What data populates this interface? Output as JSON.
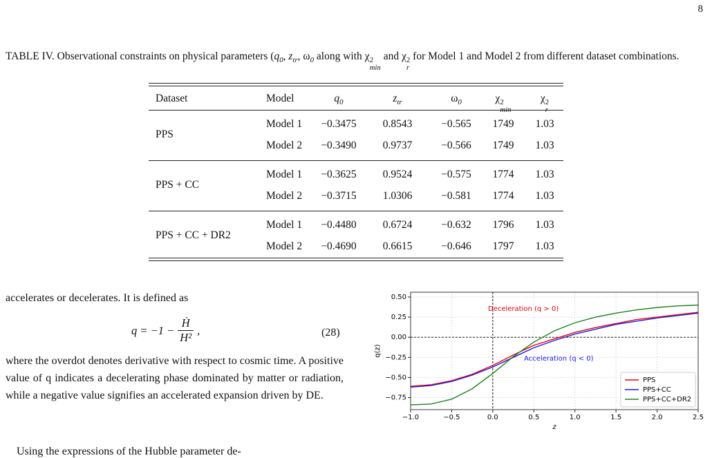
{
  "page_number": "8",
  "caption": [
    {
      "t": "TABLE IV. Observational constraints on physical parameters ("
    },
    {
      "t": "q",
      "i": true,
      "sub": "0"
    },
    {
      "t": ", "
    },
    {
      "t": "z",
      "i": true,
      "sub": "tr"
    },
    {
      "t": ", "
    },
    {
      "t": "ω",
      "sub": "0"
    },
    {
      "t": " along with "
    },
    {
      "t": "χ",
      "sup": "2",
      "sub": "min"
    },
    {
      "t": " and "
    },
    {
      "t": "χ",
      "sup": "2",
      "sub": "r"
    },
    {
      "t": " for Model 1 and Model 2 from different dataset combinations."
    }
  ],
  "table": {
    "header": [
      {
        "t": "Dataset"
      },
      {
        "t": "Model"
      },
      {
        "t": "q",
        "i": true,
        "sub": "0"
      },
      {
        "t": "z",
        "i": true,
        "sub": "tr"
      },
      {
        "t": "ω",
        "sub": "0"
      },
      {
        "t": "χ",
        "sup": "2",
        "sub": "min"
      },
      {
        "t": "χ",
        "sup": "2",
        "sub": "r"
      }
    ],
    "groups": [
      {
        "dataset": "PPS",
        "rows": [
          [
            "Model 1",
            "−0.3475",
            "0.8543",
            "−0.565",
            "1749",
            "1.03"
          ],
          [
            "Model 2",
            "−0.3490",
            "0.9737",
            "−0.566",
            "1749",
            "1.03"
          ]
        ]
      },
      {
        "dataset": "PPS + CC",
        "rows": [
          [
            "Model 1",
            "−0.3625",
            "0.9524",
            "−0.575",
            "1774",
            "1.03"
          ],
          [
            "Model 2",
            "−0.3715",
            "1.0306",
            "−0.581",
            "1774",
            "1.03"
          ]
        ]
      },
      {
        "dataset": "PPS + CC + DR2",
        "rows": [
          [
            "Model 1",
            "−0.4480",
            "0.6724",
            "−0.632",
            "1796",
            "1.03"
          ],
          [
            "Model 2",
            "−0.4690",
            "0.6615",
            "−0.646",
            "1797",
            "1.03"
          ]
        ]
      }
    ]
  },
  "text": {
    "intro": "accelerates or decelerates. It is defined as",
    "equation": {
      "lhs": "q = −1 −",
      "numerator": "Ḣ",
      "denominator": "H²",
      "tail": ",",
      "number": "(28)"
    },
    "paragraph": "where the overdot denotes derivative with respect to cosmic time. A positive value of q indicates a decelerating phase dominated by matter or radiation, while a negative value signifies an accelerated expansion driven by DE.",
    "next": "Using the expressions of the Hubble parameter de-"
  },
  "chart_data": {
    "type": "line",
    "xlabel": "z",
    "ylabel": "q(z)",
    "x": [
      -1,
      -0.75,
      -0.5,
      -0.25,
      0,
      0.25,
      0.5,
      0.75,
      1,
      1.25,
      1.5,
      1.75,
      2,
      2.25,
      2.5
    ],
    "series": [
      {
        "name": "PPS",
        "color": "#e8000b",
        "values": [
          -0.61,
          -0.59,
          -0.54,
          -0.46,
          -0.35,
          -0.22,
          -0.1,
          -0.02,
          0.06,
          0.12,
          0.17,
          0.22,
          0.25,
          0.28,
          0.31
        ]
      },
      {
        "name": "PPS+CC",
        "color": "#1a1ae6",
        "values": [
          -0.62,
          -0.6,
          -0.55,
          -0.47,
          -0.37,
          -0.25,
          -0.13,
          -0.04,
          0.04,
          0.1,
          0.16,
          0.2,
          0.24,
          0.27,
          0.3
        ]
      },
      {
        "name": "PPS+CC+DR2",
        "color": "#1a801a",
        "values": [
          -0.84,
          -0.83,
          -0.77,
          -0.64,
          -0.45,
          -0.24,
          -0.06,
          0.08,
          0.18,
          0.25,
          0.3,
          0.34,
          0.37,
          0.39,
          0.4
        ]
      }
    ],
    "xlim": [
      -1,
      2.5
    ],
    "ylim": [
      -0.9,
      0.56
    ],
    "xticks": [
      {
        "value": -1,
        "label": "−1.0"
      },
      {
        "value": -0.5,
        "label": "−0.5"
      },
      {
        "value": 0,
        "label": "0.0"
      },
      0.5,
      {
        "value": 1,
        "label": "1.0"
      },
      1.5,
      {
        "value": 2,
        "label": "2.0"
      },
      2.5
    ],
    "yticks": [
      {
        "value": -0.75,
        "label": "−0.75"
      },
      {
        "value": -0.5,
        "label": "−0.50"
      },
      {
        "value": -0.25,
        "label": "−0.25"
      },
      {
        "value": 0,
        "label": "0.00"
      },
      {
        "value": 0.25,
        "label": "0.25"
      },
      {
        "value": 0.5,
        "label": "0.50"
      }
    ],
    "hlines": [
      0
    ],
    "vlines": [
      0
    ],
    "grid": true,
    "legend": "lower right",
    "annotations": [
      {
        "text": "Deceleration (q > 0)",
        "color": "#e8000b"
      },
      {
        "text": "Acceleration (q < 0)",
        "color": "#1a1ae6"
      }
    ]
  }
}
